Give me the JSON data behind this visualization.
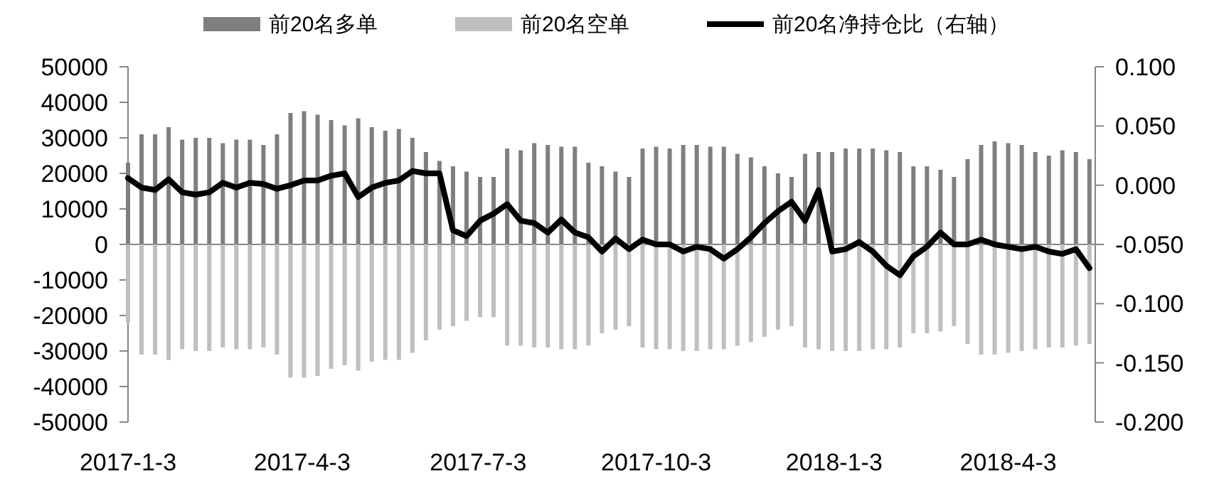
{
  "chart_data": {
    "type": "bar",
    "x": [
      "2017-01-03",
      "2017-01-10",
      "2017-01-17",
      "2017-01-24",
      "2017-01-31",
      "2017-02-07",
      "2017-02-14",
      "2017-02-21",
      "2017-02-28",
      "2017-03-07",
      "2017-03-14",
      "2017-03-21",
      "2017-03-28",
      "2017-04-04",
      "2017-04-11",
      "2017-04-18",
      "2017-04-25",
      "2017-05-02",
      "2017-05-09",
      "2017-05-16",
      "2017-05-23",
      "2017-05-30",
      "2017-06-06",
      "2017-06-13",
      "2017-06-20",
      "2017-06-27",
      "2017-07-04",
      "2017-07-11",
      "2017-07-18",
      "2017-07-25",
      "2017-08-01",
      "2017-08-08",
      "2017-08-15",
      "2017-08-22",
      "2017-08-29",
      "2017-09-05",
      "2017-09-12",
      "2017-09-19",
      "2017-09-26",
      "2017-10-03",
      "2017-10-10",
      "2017-10-17",
      "2017-10-24",
      "2017-10-31",
      "2017-11-07",
      "2017-11-14",
      "2017-11-21",
      "2017-11-28",
      "2017-12-05",
      "2017-12-12",
      "2017-12-19",
      "2017-12-26",
      "2018-01-02",
      "2018-01-09",
      "2018-01-16",
      "2018-01-23",
      "2018-01-30",
      "2018-02-06",
      "2018-02-13",
      "2018-02-20",
      "2018-02-27",
      "2018-03-06",
      "2018-03-13",
      "2018-03-20",
      "2018-03-27",
      "2018-04-03",
      "2018-04-10",
      "2018-04-17",
      "2018-04-24",
      "2018-05-01",
      "2018-05-08",
      "2018-05-15"
    ],
    "series": [
      {
        "name": "前20名多单",
        "color": "#7f7f7f",
        "values": [
          23000,
          31000,
          31000,
          33000,
          29500,
          30000,
          30000,
          28500,
          29500,
          29500,
          28000,
          31000,
          37000,
          37500,
          36500,
          35000,
          33500,
          35500,
          33000,
          32000,
          32500,
          30000,
          26000,
          23500,
          22000,
          20500,
          19000,
          19000,
          27000,
          26500,
          28500,
          28000,
          27500,
          27500,
          23000,
          22000,
          20500,
          19000,
          27000,
          27500,
          27000,
          28000,
          28000,
          27500,
          27500,
          25500,
          24500,
          22000,
          20000,
          19000,
          25500,
          26000,
          26000,
          27000,
          27000,
          27000,
          26500,
          26000,
          22000,
          22000,
          21000,
          19000,
          24000,
          28000,
          29000,
          28500,
          28000,
          26000,
          25000,
          26500,
          26000,
          24000
        ]
      },
      {
        "name": "前20名空单",
        "color": "#bfbfbf",
        "values": [
          -22000,
          -31000,
          -31000,
          -32500,
          -29500,
          -30000,
          -30000,
          -29000,
          -29500,
          -29500,
          -29000,
          -31000,
          -37500,
          -37500,
          -37000,
          -35000,
          -34000,
          -35500,
          -33000,
          -32500,
          -32500,
          -30500,
          -27000,
          -24000,
          -23000,
          -21500,
          -20500,
          -20500,
          -28500,
          -28500,
          -29000,
          -29000,
          -29500,
          -29500,
          -28500,
          -25000,
          -24000,
          -23000,
          -29000,
          -29500,
          -29500,
          -30000,
          -30000,
          -29500,
          -29500,
          -28500,
          -27500,
          -26000,
          -24000,
          -23000,
          -29000,
          -29500,
          -30000,
          -30000,
          -30000,
          -29500,
          -29500,
          -29000,
          -25000,
          -25000,
          -24500,
          -23000,
          -28000,
          -31000,
          -31000,
          -30500,
          -30000,
          -29500,
          -29000,
          -29000,
          -28500,
          -28000
        ]
      },
      {
        "name": "前20名净持仓比（右轴）",
        "type": "line",
        "axis": "y2",
        "color": "#000000",
        "values": [
          0.006,
          -0.002,
          -0.004,
          0.005,
          -0.006,
          -0.008,
          -0.006,
          0.002,
          -0.002,
          0.002,
          0.001,
          -0.003,
          0.0,
          0.004,
          0.004,
          0.008,
          0.01,
          -0.01,
          -0.002,
          0.002,
          0.004,
          0.012,
          0.01,
          0.01,
          -0.038,
          -0.043,
          -0.03,
          -0.024,
          -0.016,
          -0.03,
          -0.032,
          -0.04,
          -0.029,
          -0.04,
          -0.044,
          -0.056,
          -0.045,
          -0.054,
          -0.046,
          -0.05,
          -0.05,
          -0.056,
          -0.052,
          -0.054,
          -0.062,
          -0.054,
          -0.044,
          -0.032,
          -0.022,
          -0.014,
          -0.03,
          -0.004,
          -0.056,
          -0.054,
          -0.048,
          -0.056,
          -0.068,
          -0.076,
          -0.06,
          -0.052,
          -0.04,
          -0.05,
          -0.05,
          -0.046,
          -0.05,
          -0.052,
          -0.054,
          -0.052,
          -0.056,
          -0.058,
          -0.054,
          -0.07
        ]
      }
    ],
    "xlim": [
      "2017-01-03",
      "2018-05-18"
    ],
    "xticks": [
      {
        "value": "2017-01-03",
        "label": "2017-1-3"
      },
      {
        "value": "2017-04-03",
        "label": "2017-4-3"
      },
      {
        "value": "2017-07-03",
        "label": "2017-7-3"
      },
      {
        "value": "2017-10-03",
        "label": "2017-10-3"
      },
      {
        "value": "2018-01-03",
        "label": "2018-1-3"
      },
      {
        "value": "2018-04-03",
        "label": "2018-4-3"
      }
    ],
    "ylim": [
      -50000,
      50000
    ],
    "yticks": [
      -50000,
      -40000,
      -30000,
      -20000,
      -10000,
      0,
      10000,
      20000,
      30000,
      40000,
      50000
    ],
    "y2lim": [
      -0.2,
      0.1
    ],
    "y2ticks": [
      {
        "value": -0.2,
        "label": "-0.200"
      },
      {
        "value": -0.15,
        "label": "-0.150"
      },
      {
        "value": -0.1,
        "label": "-0.100"
      },
      {
        "value": -0.05,
        "label": "-0.050"
      },
      {
        "value": 0,
        "label": "0.000"
      },
      {
        "value": 0.05,
        "label": "0.050"
      },
      {
        "value": 0.1,
        "label": "0.100"
      }
    ],
    "legend": "top",
    "stacked": true
  }
}
